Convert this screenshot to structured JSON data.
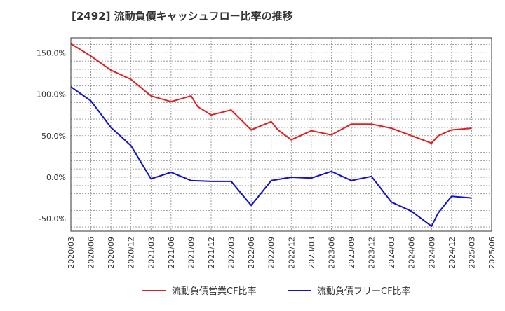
{
  "chart_data": {
    "type": "line",
    "title": "[2492]  流動負債キャッシュフロー比率の推移",
    "xlabel": "",
    "ylabel": "",
    "x_ticks": [
      "2020/03",
      "2020/06",
      "2020/09",
      "2020/12",
      "2021/03",
      "2021/06",
      "2021/09",
      "2021/12",
      "2022/03",
      "2022/06",
      "2022/09",
      "2022/12",
      "2023/03",
      "2023/06",
      "2023/09",
      "2023/12",
      "2024/03",
      "2024/06",
      "2024/09",
      "2024/12",
      "2025/03",
      "2025/06"
    ],
    "y_ticks": [
      {
        "value": 150,
        "label": "150.0%"
      },
      {
        "value": 100,
        "label": "100.0%"
      },
      {
        "value": 50,
        "label": "50.0%"
      },
      {
        "value": 0,
        "label": "0.0%"
      },
      {
        "value": -50,
        "label": "-50.0%"
      }
    ],
    "ylim": [
      -65,
      168
    ],
    "grid": true,
    "legend_position": "bottom",
    "series": [
      {
        "name": "流動負債営業CF比率",
        "color": "#e02020",
        "points": [
          [
            "2020/03",
            161
          ],
          [
            "2020/06",
            146
          ],
          [
            "2020/09",
            129
          ],
          [
            "2020/12",
            118
          ],
          [
            "2021/03",
            98
          ],
          [
            "2021/06",
            91
          ],
          [
            "2021/09",
            98
          ],
          [
            "2021/10",
            85
          ],
          [
            "2021/12",
            75
          ],
          [
            "2022/03",
            81
          ],
          [
            "2022/06",
            57
          ],
          [
            "2022/09",
            67
          ],
          [
            "2022/10",
            57
          ],
          [
            "2022/12",
            45
          ],
          [
            "2023/03",
            56
          ],
          [
            "2023/06",
            51
          ],
          [
            "2023/09",
            64
          ],
          [
            "2023/12",
            64
          ],
          [
            "2024/03",
            59
          ],
          [
            "2024/06",
            50
          ],
          [
            "2024/09",
            41
          ],
          [
            "2024/10",
            50
          ],
          [
            "2024/12",
            57
          ],
          [
            "2025/03",
            59
          ]
        ]
      },
      {
        "name": "流動負債フリーCF比率",
        "color": "#1010d0",
        "points": [
          [
            "2020/03",
            109
          ],
          [
            "2020/06",
            92
          ],
          [
            "2020/09",
            60
          ],
          [
            "2020/12",
            38
          ],
          [
            "2021/03",
            -2
          ],
          [
            "2021/06",
            6
          ],
          [
            "2021/09",
            -4
          ],
          [
            "2021/12",
            -5
          ],
          [
            "2022/03",
            -5
          ],
          [
            "2022/06",
            -34
          ],
          [
            "2022/09",
            -4
          ],
          [
            "2022/12",
            0
          ],
          [
            "2023/03",
            -1
          ],
          [
            "2023/06",
            7
          ],
          [
            "2023/09",
            -4
          ],
          [
            "2023/12",
            1
          ],
          [
            "2024/03",
            -30
          ],
          [
            "2024/06",
            -41
          ],
          [
            "2024/09",
            -59
          ],
          [
            "2024/10",
            -43
          ],
          [
            "2024/12",
            -23
          ],
          [
            "2025/03",
            -25
          ]
        ]
      }
    ]
  }
}
